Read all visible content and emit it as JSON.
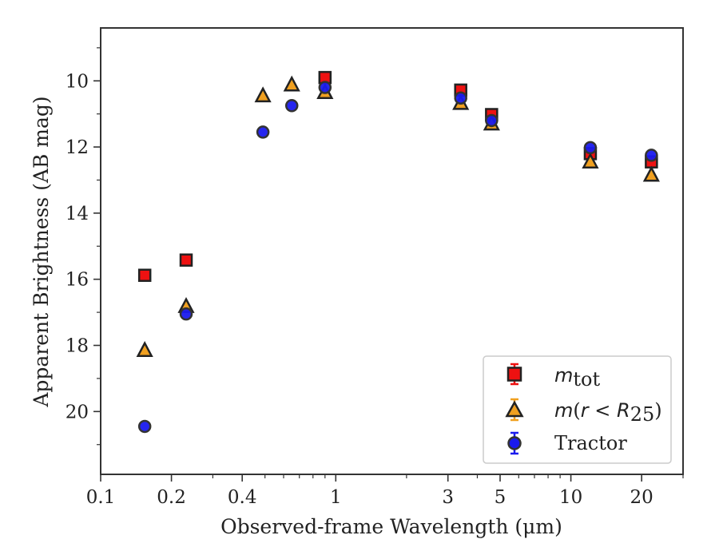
{
  "chart_data": {
    "type": "scatter",
    "xlabel": "Observed-frame Wavelength (μm)",
    "ylabel": "Apparent Brightness (AB mag)",
    "x_scale": "log",
    "xlim": [
      0.1,
      30
    ],
    "ylim": [
      21.9,
      8.4
    ],
    "y_inverted": true,
    "x_ticks": [
      0.1,
      0.2,
      0.4,
      1,
      3,
      5,
      10,
      20
    ],
    "x_tick_labels": [
      "0.1",
      "0.2",
      "0.4",
      "1",
      "3",
      "5",
      "10",
      "20"
    ],
    "y_ticks": [
      10,
      12,
      14,
      16,
      18,
      20
    ],
    "y_tick_labels": [
      "10",
      "12",
      "14",
      "16",
      "18",
      "20"
    ],
    "grid": false,
    "legend_position": "bottom-right",
    "series": [
      {
        "name": "m_tot",
        "legend_text": "m_tot",
        "marker": "square",
        "color": "#ee1111",
        "edge_color": "#222222",
        "points": [
          {
            "x": 0.154,
            "y": 15.88
          },
          {
            "x": 0.231,
            "y": 15.42
          },
          {
            "x": 0.9,
            "y": 9.9
          },
          {
            "x": 3.4,
            "y": 10.28
          },
          {
            "x": 4.6,
            "y": 11.02
          },
          {
            "x": 12.1,
            "y": 12.2
          },
          {
            "x": 22.0,
            "y": 12.45
          }
        ]
      },
      {
        "name": "m(r < R25)",
        "legend_text": "m(r < R25)",
        "marker": "triangle",
        "color": "#f0a020",
        "edge_color": "#222222",
        "points": [
          {
            "x": 0.154,
            "y": 18.15
          },
          {
            "x": 0.231,
            "y": 16.82
          },
          {
            "x": 0.49,
            "y": 10.45
          },
          {
            "x": 0.65,
            "y": 10.12
          },
          {
            "x": 0.9,
            "y": 10.35
          },
          {
            "x": 3.4,
            "y": 10.68
          },
          {
            "x": 4.6,
            "y": 11.3
          },
          {
            "x": 12.1,
            "y": 12.45
          },
          {
            "x": 22.0,
            "y": 12.85
          }
        ]
      },
      {
        "name": "Tractor",
        "legend_text": "Tractor",
        "marker": "circle",
        "color": "#1a1aee",
        "edge_color": "#333333",
        "points": [
          {
            "x": 0.154,
            "y": 20.45
          },
          {
            "x": 0.231,
            "y": 17.05
          },
          {
            "x": 0.49,
            "y": 11.55
          },
          {
            "x": 0.65,
            "y": 10.75
          },
          {
            "x": 0.9,
            "y": 10.2
          },
          {
            "x": 3.4,
            "y": 10.52
          },
          {
            "x": 4.6,
            "y": 11.2
          },
          {
            "x": 12.1,
            "y": 12.02
          },
          {
            "x": 22.0,
            "y": 12.25
          }
        ]
      }
    ]
  }
}
